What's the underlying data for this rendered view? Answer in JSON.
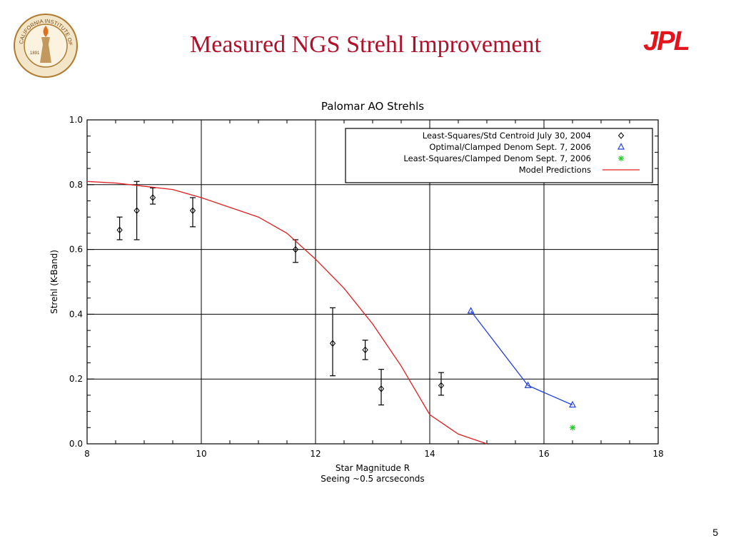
{
  "slide": {
    "title": "Measured NGS Strehl Improvement",
    "page_number": "5",
    "logos": {
      "seal_text": "CALIFORNIA INSTITUTE OF TECHNOLOGY",
      "seal_year": "1891",
      "jpl_text": "JPL"
    }
  },
  "colors": {
    "title": "#b0102a",
    "jpl": "#e3141b",
    "series_triangles": "#1f3fe0",
    "series_star": "#22cc22",
    "model_line": "#e02020"
  },
  "chart_data": {
    "type": "scatter",
    "title": "Palomar AO Strehls",
    "xlabel": "Star Magnitude R",
    "xlabel2": "Seeing ~0.5 arcseconds",
    "ylabel": "Strehl (K-Band)",
    "xlim": [
      8,
      18
    ],
    "ylim": [
      0.0,
      1.0
    ],
    "xticks": [
      "8",
      "10",
      "12",
      "14",
      "16",
      "18"
    ],
    "yticks": [
      "0.0",
      "0.2",
      "0.4",
      "0.6",
      "0.8",
      "1.0"
    ],
    "grid": true,
    "legend_position": "top-right",
    "series": [
      {
        "name": "Least-Squares/Std Centroid July 30, 2004",
        "marker": "diamond",
        "color": "#000000",
        "points": [
          {
            "x": 8.57,
            "y": 0.66,
            "lo": 0.63,
            "hi": 0.7
          },
          {
            "x": 8.87,
            "y": 0.72,
            "lo": 0.63,
            "hi": 0.81
          },
          {
            "x": 9.15,
            "y": 0.76,
            "lo": 0.74,
            "hi": 0.79
          },
          {
            "x": 9.85,
            "y": 0.72,
            "lo": 0.67,
            "hi": 0.76
          },
          {
            "x": 11.65,
            "y": 0.6,
            "lo": 0.56,
            "hi": 0.63
          },
          {
            "x": 12.3,
            "y": 0.31,
            "lo": 0.21,
            "hi": 0.42
          },
          {
            "x": 12.87,
            "y": 0.29,
            "lo": 0.26,
            "hi": 0.32
          },
          {
            "x": 13.15,
            "y": 0.17,
            "lo": 0.12,
            "hi": 0.23
          },
          {
            "x": 14.2,
            "y": 0.18,
            "lo": 0.15,
            "hi": 0.22
          }
        ]
      },
      {
        "name": "Optimal/Clamped Denom Sept. 7, 2006",
        "marker": "triangle",
        "color": "#1f3fe0",
        "connected": true,
        "points": [
          {
            "x": 14.72,
            "y": 0.41
          },
          {
            "x": 15.72,
            "y": 0.18
          },
          {
            "x": 16.5,
            "y": 0.12
          }
        ]
      },
      {
        "name": "Least-Squares/Clamped Denom Sept. 7, 2006",
        "marker": "star",
        "color": "#22cc22",
        "points": [
          {
            "x": 16.5,
            "y": 0.05
          }
        ]
      },
      {
        "name": "Model Predictions",
        "marker": "line",
        "color": "#e02020",
        "points": [
          {
            "x": 8.0,
            "y": 0.81
          },
          {
            "x": 8.5,
            "y": 0.805
          },
          {
            "x": 9.0,
            "y": 0.795
          },
          {
            "x": 9.5,
            "y": 0.785
          },
          {
            "x": 10.0,
            "y": 0.76
          },
          {
            "x": 10.5,
            "y": 0.73
          },
          {
            "x": 11.0,
            "y": 0.7
          },
          {
            "x": 11.5,
            "y": 0.65
          },
          {
            "x": 12.0,
            "y": 0.57
          },
          {
            "x": 12.5,
            "y": 0.48
          },
          {
            "x": 13.0,
            "y": 0.37
          },
          {
            "x": 13.5,
            "y": 0.24
          },
          {
            "x": 14.0,
            "y": 0.09
          },
          {
            "x": 14.5,
            "y": 0.03
          },
          {
            "x": 15.0,
            "y": 0.0
          }
        ]
      }
    ]
  }
}
